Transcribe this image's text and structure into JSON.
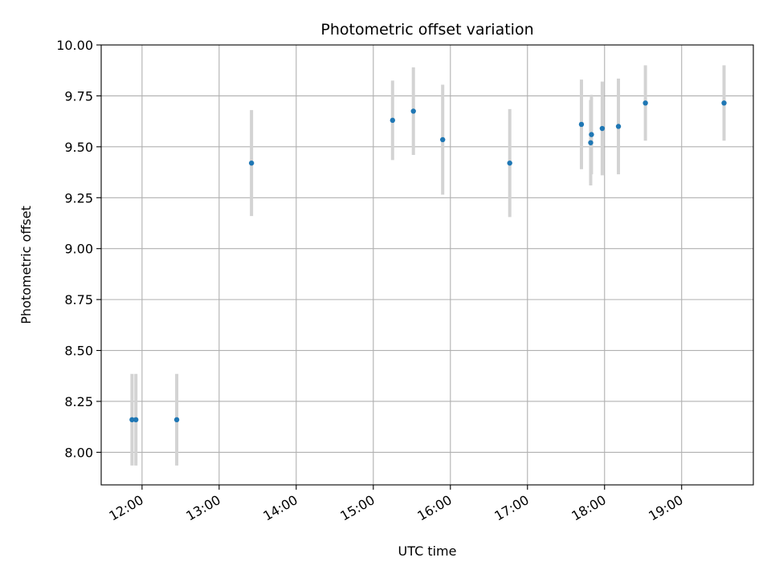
{
  "chart_data": {
    "type": "scatter",
    "title": "Photometric offset variation",
    "xlabel": "UTC time",
    "ylabel": "Photometric offset",
    "grid": true,
    "xlim_hours": [
      11.47,
      19.93
    ],
    "ylim": [
      7.84,
      10.0
    ],
    "x_ticks": [
      {
        "value": 12,
        "label": "12:00"
      },
      {
        "value": 13,
        "label": "13:00"
      },
      {
        "value": 14,
        "label": "14:00"
      },
      {
        "value": 15,
        "label": "15:00"
      },
      {
        "value": 16,
        "label": "16:00"
      },
      {
        "value": 17,
        "label": "17:00"
      },
      {
        "value": 18,
        "label": "18:00"
      },
      {
        "value": 19,
        "label": "19:00"
      }
    ],
    "y_ticks": [
      {
        "value": 8.0,
        "label": "8.00"
      },
      {
        "value": 8.25,
        "label": "8.25"
      },
      {
        "value": 8.5,
        "label": "8.50"
      },
      {
        "value": 8.75,
        "label": "8.75"
      },
      {
        "value": 9.0,
        "label": "9.00"
      },
      {
        "value": 9.25,
        "label": "9.25"
      },
      {
        "value": 9.5,
        "label": "9.50"
      },
      {
        "value": 9.75,
        "label": "9.75"
      },
      {
        "value": 10.0,
        "label": "10.00"
      }
    ],
    "marker_color": "#1f77b4",
    "errorbar_color": "#d3d3d3",
    "points": [
      {
        "x": 11.87,
        "y": 8.16,
        "err": 0.225
      },
      {
        "x": 11.92,
        "y": 8.16,
        "err": 0.225
      },
      {
        "x": 12.45,
        "y": 8.16,
        "err": 0.225
      },
      {
        "x": 13.42,
        "y": 9.42,
        "err": 0.26
      },
      {
        "x": 15.25,
        "y": 9.63,
        "err": 0.195
      },
      {
        "x": 15.52,
        "y": 9.675,
        "err": 0.215
      },
      {
        "x": 15.9,
        "y": 9.535,
        "err": 0.27
      },
      {
        "x": 16.77,
        "y": 9.42,
        "err": 0.265
      },
      {
        "x": 17.7,
        "y": 9.61,
        "err": 0.22
      },
      {
        "x": 17.82,
        "y": 9.52,
        "err": 0.21
      },
      {
        "x": 17.83,
        "y": 9.56,
        "err": 0.195
      },
      {
        "x": 17.97,
        "y": 9.59,
        "err": 0.23
      },
      {
        "x": 18.18,
        "y": 9.6,
        "err": 0.235
      },
      {
        "x": 18.53,
        "y": 9.715,
        "err": 0.185
      },
      {
        "x": 19.55,
        "y": 9.715,
        "err": 0.185
      }
    ]
  }
}
